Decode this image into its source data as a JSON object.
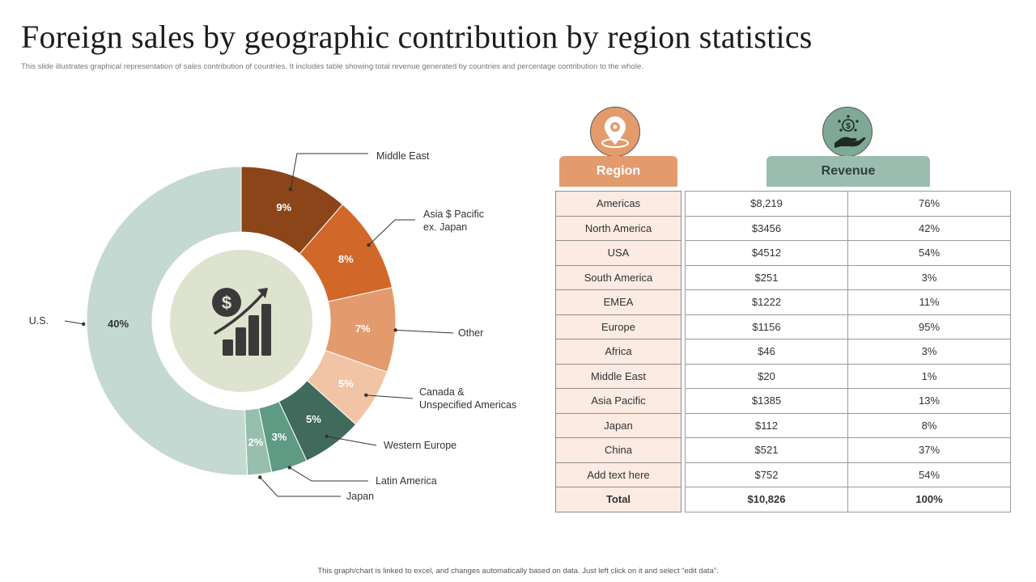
{
  "title": "Foreign sales by geographic contribution by region statistics",
  "subtitle": "This slide illustrates graphical representation of sales contribution of countries. It includes table showing total revenue generated by countries and percentage contribution to the whole.",
  "footer": "This graph/chart is linked to excel, and changes automatically based on data. Just left click on it and select “edit data”.",
  "chart_data": {
    "type": "pie",
    "variant": "donut",
    "title": "",
    "start": "top",
    "direction": "clockwise",
    "slices": [
      {
        "name": "Middle East",
        "label_lines": [
          "Middle East"
        ],
        "value": 9,
        "label": "9%",
        "color": "#8b4519"
      },
      {
        "name": "Asia $ Pacific ex. Japan",
        "label_lines": [
          "Asia $ Pacific",
          "ex. Japan"
        ],
        "value": 8,
        "label": "8%",
        "color": "#d2672a"
      },
      {
        "name": "Other",
        "label_lines": [
          "Other"
        ],
        "value": 7,
        "label": "7%",
        "color": "#e39b6e"
      },
      {
        "name": "Canada & Unspecified Americas",
        "label_lines": [
          "Canada  &",
          "Unspecified  Americas"
        ],
        "value": 5,
        "label": "5%",
        "color": "#f1c4a6"
      },
      {
        "name": "Western Europe",
        "label_lines": [
          "Western Europe"
        ],
        "value": 5,
        "label": "5%",
        "color": "#3f6a5c"
      },
      {
        "name": "Latin America",
        "label_lines": [
          "Latin America"
        ],
        "value": 3,
        "label": "3%",
        "color": "#5e9a84"
      },
      {
        "name": "Japan",
        "label_lines": [
          "Japan"
        ],
        "value": 2,
        "label": "2%",
        "color": "#96bfae"
      },
      {
        "name": "U.S.",
        "label_lines": [
          "U.S."
        ],
        "value": 40,
        "label": "40%",
        "color": "#c3d9d2"
      }
    ],
    "center_icon": "dollar-growth-chart-icon",
    "center_color": "#dde3cf"
  },
  "table": {
    "region_header": "Region",
    "revenue_header": "Revenue",
    "region_icon": "location-pin-icon",
    "revenue_icon": "money-hand-icon",
    "rows": [
      {
        "region": "Americas",
        "revenue": "$8,219",
        "percent": "76%"
      },
      {
        "region": "North America",
        "revenue": "$3456",
        "percent": "42%"
      },
      {
        "region": "USA",
        "revenue": "$4512",
        "percent": "54%"
      },
      {
        "region": "South America",
        "revenue": "$251",
        "percent": "3%"
      },
      {
        "region": "EMEA",
        "revenue": "$1222",
        "percent": "11%"
      },
      {
        "region": "Europe",
        "revenue": "$1156",
        "percent": "95%"
      },
      {
        "region": "Africa",
        "revenue": "$46",
        "percent": "3%"
      },
      {
        "region": "Middle East",
        "revenue": "$20",
        "percent": "1%"
      },
      {
        "region": "Asia Pacific",
        "revenue": "$1385",
        "percent": "13%"
      },
      {
        "region": "Japan",
        "revenue": "$112",
        "percent": "8%"
      },
      {
        "region": "China",
        "revenue": "$521",
        "percent": "37%"
      },
      {
        "region": "Add text here",
        "revenue": "$752",
        "percent": "54%"
      }
    ],
    "total": {
      "region": "Total",
      "revenue": "$10,826",
      "percent": "100%"
    }
  }
}
